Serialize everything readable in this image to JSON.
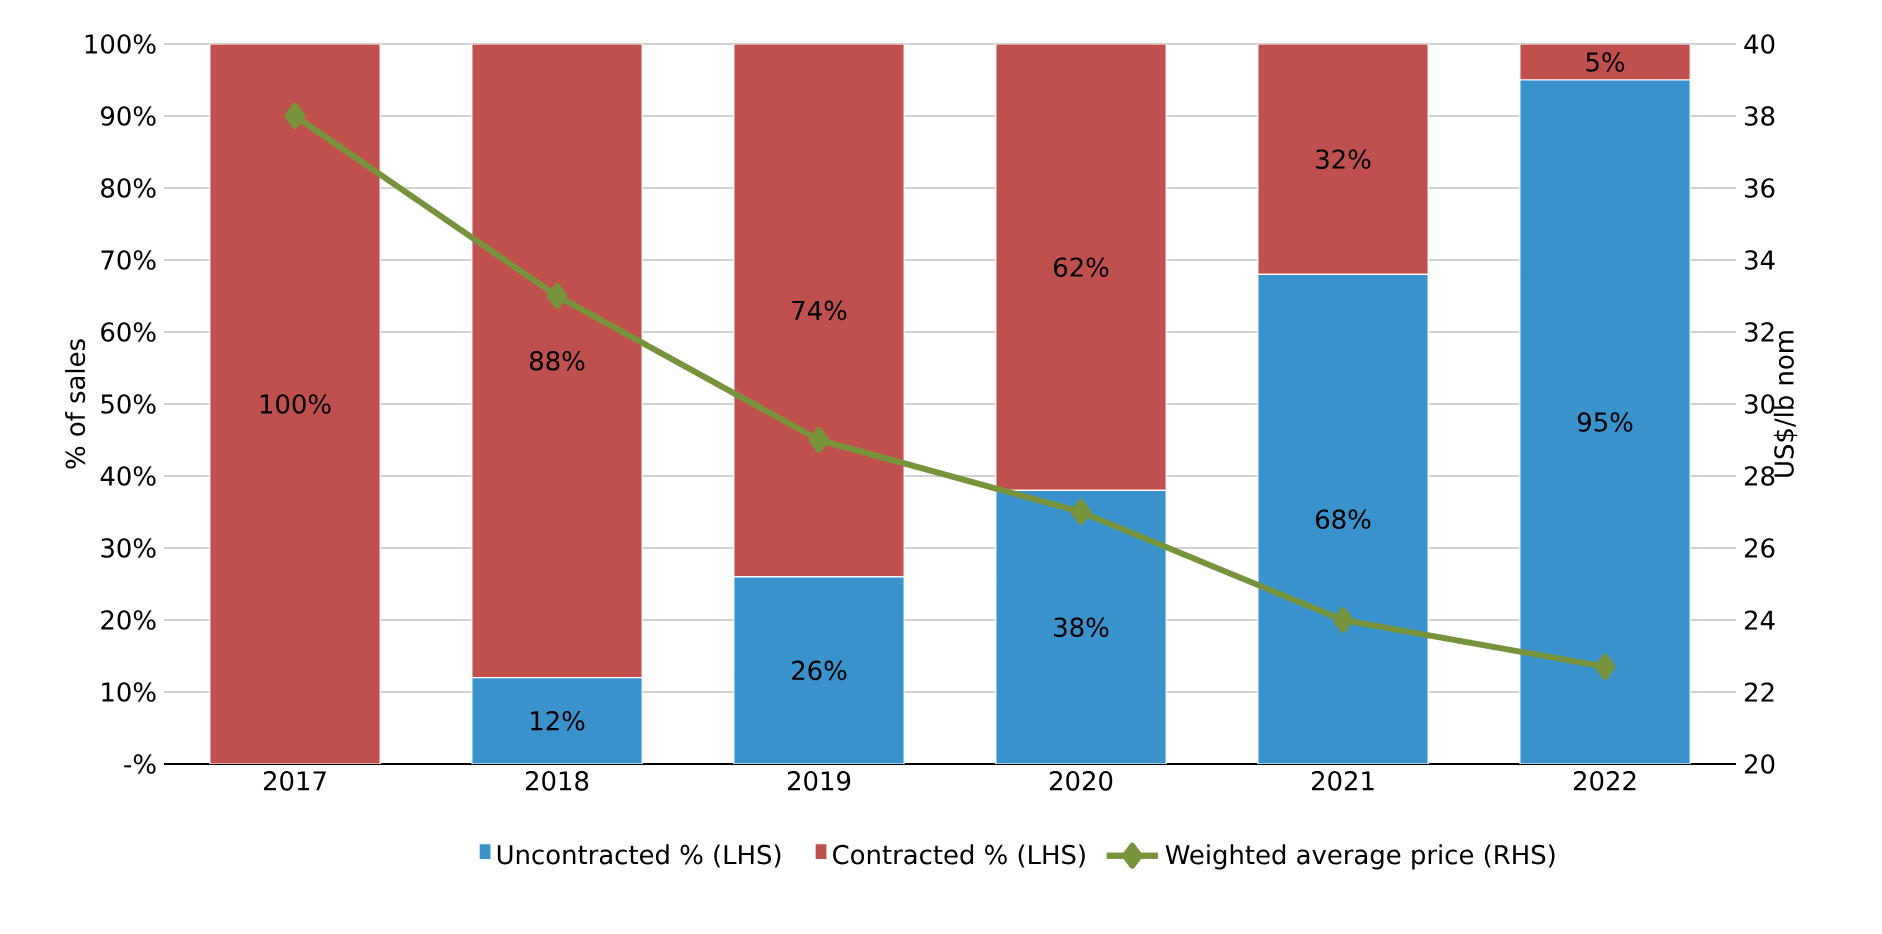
{
  "chart_data": {
    "type": "bar",
    "stacked": true,
    "ylabel": "% of sales",
    "y2label": "US$/lb nom",
    "categories": [
      "2017",
      "2018",
      "2019",
      "2020",
      "2021",
      "2022"
    ],
    "series": [
      {
        "name": "Uncontracted % (LHS)",
        "color": "#3a92cc",
        "values": [
          0,
          12,
          26,
          38,
          68,
          95
        ],
        "value_labels": [
          null,
          "12%",
          "26%",
          "38%",
          "68%",
          "95%"
        ]
      },
      {
        "name": "Contracted % (LHS)",
        "color": "#c0504d",
        "values": [
          100,
          88,
          74,
          62,
          32,
          5
        ],
        "value_labels": [
          "100%",
          "88%",
          "74%",
          "62%",
          "32%",
          "5%"
        ]
      },
      {
        "name": "Weighted average price (RHS)",
        "type": "line",
        "axis": "y2",
        "color": "#77933c",
        "marker": "diamond",
        "values": [
          38,
          33,
          29,
          27,
          24,
          22.7
        ]
      }
    ],
    "ylim": [
      0,
      100
    ],
    "yticks": [
      {
        "value": 0,
        "label": "-%"
      },
      {
        "value": 10,
        "label": "10%"
      },
      {
        "value": 20,
        "label": "20%"
      },
      {
        "value": 30,
        "label": "30%"
      },
      {
        "value": 40,
        "label": "40%"
      },
      {
        "value": 50,
        "label": "50%"
      },
      {
        "value": 60,
        "label": "60%"
      },
      {
        "value": 70,
        "label": "70%"
      },
      {
        "value": 80,
        "label": "80%"
      },
      {
        "value": 90,
        "label": "90%"
      },
      {
        "value": 100,
        "label": "100%"
      }
    ],
    "y2lim": [
      20,
      40
    ],
    "y2ticks": [
      20,
      22,
      24,
      26,
      28,
      30,
      32,
      34,
      36,
      38,
      40
    ],
    "grid": "y",
    "legend": "bottom"
  }
}
